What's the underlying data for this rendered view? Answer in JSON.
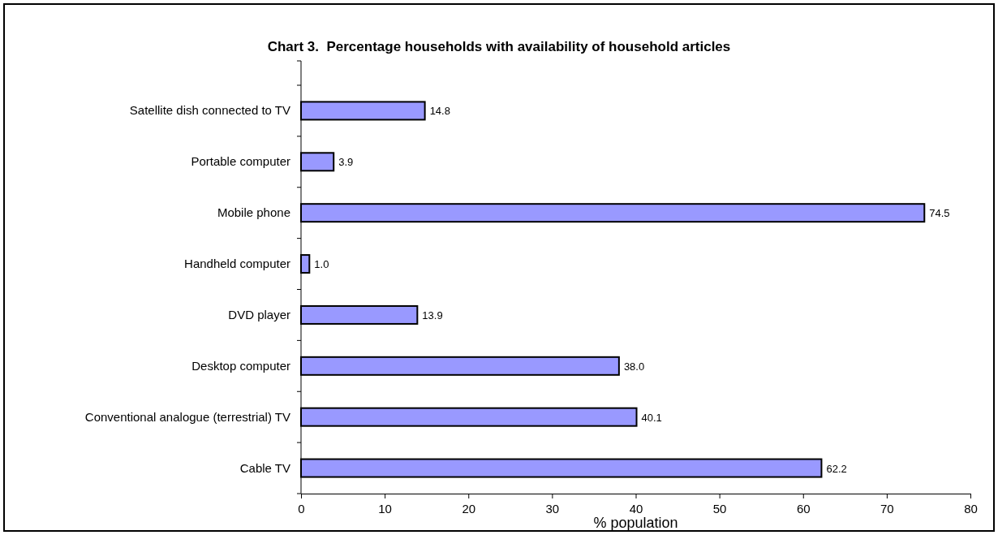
{
  "chart_data": {
    "type": "bar",
    "orientation": "horizontal",
    "title": "Chart 3.  Percentage households with availability of household articles",
    "xlabel": "% population",
    "categories": [
      "Satellite dish connected to TV",
      "Portable computer",
      "Mobile phone",
      "Handheld computer",
      "DVD player",
      "Desktop computer",
      "Conventional analogue (terrestrial) TV",
      "Cable TV"
    ],
    "values": [
      14.8,
      3.9,
      74.5,
      1.0,
      13.9,
      38.0,
      40.1,
      62.2
    ],
    "value_labels": [
      "14.8",
      "3.9",
      "74.5",
      "1.0",
      "13.9",
      "38.0",
      "40.1",
      "62.2"
    ],
    "color": "#9999ff",
    "xlim": [
      0,
      80
    ],
    "xticks": [
      0,
      10,
      20,
      30,
      40,
      50,
      60,
      70,
      80
    ],
    "grid": false
  }
}
